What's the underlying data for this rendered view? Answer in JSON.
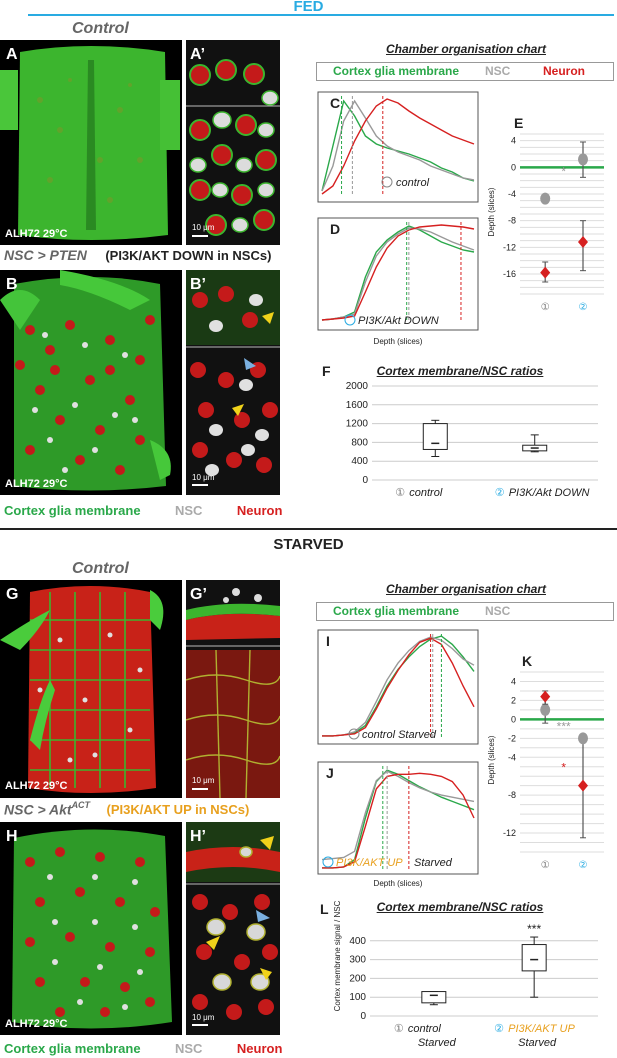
{
  "fed": {
    "title": "FED",
    "control_label": "Control",
    "panel_A": "A",
    "panel_A_prime": "A’",
    "panel_A_temp": "ALH72 29°C",
    "panel_A_prime_scale": "10 μm",
    "geno_B": "NSC > PTEN",
    "geno_B_paren": "(PI3K/AKT DOWN in NSCs)",
    "panel_B": "B",
    "panel_B_prime": "B’",
    "panel_B_temp": "ALH72 29°C",
    "panel_B_prime_scale": "10 μm",
    "bottom_legend": {
      "glia": "Cortex glia membrane",
      "nsc": "NSC",
      "neuron": "Neuron"
    },
    "chamber_title": "Chamber organisation chart",
    "legend": {
      "glia": "Cortex glia membrane",
      "nsc": "NSC",
      "neuron": "Neuron"
    },
    "panel_C": "C",
    "panel_C_label": "control",
    "panel_D": "D",
    "panel_D_label": "PI3K/Akt DOWN",
    "panel_D_xlabel": "Depth (slices)",
    "panel_E": "E",
    "panel_F": "F",
    "panel_F_title": "Cortex membrane/NSC ratios"
  },
  "starved": {
    "title": "STARVED",
    "control_label": "Control",
    "panel_G": "G",
    "panel_G_prime": "G’",
    "panel_G_temp": "ALH72 29°C",
    "panel_G_prime_scale": "10 μm",
    "geno_H": "NSC > Akt",
    "geno_H_sup": "ACT",
    "geno_H_paren": "(PI3K/AKT UP in NSCs)",
    "panel_H": "H",
    "panel_H_prime": "H’",
    "panel_H_temp": "ALH72 29°C",
    "panel_H_prime_scale": "10 μm",
    "bottom_legend": {
      "glia": "Cortex glia membrane",
      "nsc": "NSC",
      "neuron": "Neuron"
    },
    "chamber_title": "Chamber organisation chart",
    "legend": {
      "glia": "Cortex glia membrane",
      "nsc": "NSC"
    },
    "panel_I": "I",
    "panel_I_label": "control Starved",
    "panel_J": "J",
    "panel_J_label": "PI3K/AKT UP",
    "panel_J_label2": "Starved",
    "panel_J_xlabel": "Depth (slices)",
    "panel_K": "K",
    "panel_L": "L",
    "panel_L_title": "Cortex membrane/NSC ratios"
  },
  "colors": {
    "glia": "#2aa84a",
    "nsc": "#999999",
    "neuron": "#d62020",
    "fed_rule": "#29abe2",
    "up": "#e8a01e",
    "circ": "#29abe2"
  },
  "chart_data": [
    {
      "id": "C",
      "type": "line",
      "xlabel": "",
      "ylabel": "",
      "x": [
        0,
        5,
        10,
        15,
        20,
        25,
        30,
        35,
        40,
        45,
        50,
        55,
        60,
        65,
        70
      ],
      "series": [
        {
          "name": "Cortex glia membrane",
          "values": [
            0.05,
            0.5,
            0.95,
            0.8,
            0.6,
            0.52,
            0.48,
            0.45,
            0.42,
            0.38,
            0.34,
            0.28,
            0.24,
            0.18,
            0.15
          ]
        },
        {
          "name": "NSC",
          "values": [
            0.05,
            0.3,
            0.75,
            0.95,
            0.78,
            0.6,
            0.5,
            0.44,
            0.4,
            0.36,
            0.3,
            0.26,
            0.22,
            0.18,
            0.16
          ]
        },
        {
          "name": "Neuron",
          "values": [
            0.02,
            0.1,
            0.3,
            0.55,
            0.75,
            0.9,
            0.97,
            0.93,
            0.85,
            0.78,
            0.72,
            0.66,
            0.6,
            0.56,
            0.52
          ]
        }
      ],
      "markers": {
        "glia": 9,
        "nsc": 14,
        "neuron": 28
      }
    },
    {
      "id": "D",
      "type": "line",
      "xlabel": "Depth (slices)",
      "ylabel": "",
      "x": [
        0,
        5,
        10,
        15,
        20,
        25,
        30,
        35,
        40,
        45,
        50,
        55,
        60,
        65,
        70
      ],
      "series": [
        {
          "name": "Cortex glia membrane",
          "values": [
            0.02,
            0.03,
            0.05,
            0.1,
            0.45,
            0.7,
            0.82,
            0.9,
            0.96,
            0.92,
            0.86,
            0.8,
            0.76,
            0.72,
            0.7
          ]
        },
        {
          "name": "NSC",
          "values": [
            0.02,
            0.03,
            0.05,
            0.08,
            0.4,
            0.66,
            0.8,
            0.88,
            0.94,
            0.93,
            0.9,
            0.85,
            0.8,
            0.76,
            0.72
          ]
        },
        {
          "name": "Neuron",
          "values": [
            0.02,
            0.03,
            0.04,
            0.06,
            0.3,
            0.55,
            0.74,
            0.86,
            0.92,
            0.95,
            0.96,
            0.97,
            0.96,
            0.95,
            0.93
          ]
        }
      ],
      "markers": {
        "glia": 39,
        "nsc": 40,
        "neuron": 64
      }
    },
    {
      "id": "E",
      "type": "scatter",
      "xlabel": "",
      "ylabel": "Depth (slices)",
      "ylim": [
        -19,
        5
      ],
      "yticks": [
        4,
        0,
        -4,
        -8,
        -12,
        -16
      ],
      "categories": [
        "①",
        "②"
      ],
      "series": [
        {
          "name": "NSC",
          "values": [
            -4.7,
            1.2
          ],
          "error_low": [
            -4.7,
            -1.5
          ],
          "error_high": [
            -4.7,
            3.8
          ]
        },
        {
          "name": "Neuron",
          "values": [
            -15.8,
            -11.2
          ],
          "error_low": [
            -17.2,
            -15.5
          ],
          "error_high": [
            -14.2,
            -8.0
          ]
        }
      ],
      "annotations": [
        "*"
      ]
    },
    {
      "id": "F",
      "type": "bar",
      "xlabel": "",
      "ylabel": "",
      "ylim": [
        0,
        2000
      ],
      "yticks": [
        0,
        400,
        800,
        1200,
        1600,
        2000
      ],
      "categories": [
        "① control",
        "② PI3K/Akt DOWN"
      ],
      "boxes": [
        {
          "min": 500,
          "q1": 650,
          "median": 780,
          "q3": 1200,
          "max": 1270
        },
        {
          "min": 600,
          "q1": 620,
          "median": 680,
          "q3": 740,
          "max": 960
        }
      ]
    },
    {
      "id": "I",
      "type": "line",
      "xlabel": "",
      "ylabel": "",
      "x": [
        0,
        5,
        10,
        15,
        20,
        25,
        30,
        35,
        40,
        45,
        50,
        55,
        60,
        65,
        70
      ],
      "series": [
        {
          "name": "Cortex glia membrane",
          "values": [
            0.02,
            0.02,
            0.03,
            0.05,
            0.12,
            0.3,
            0.5,
            0.66,
            0.78,
            0.88,
            0.95,
            0.98,
            0.9,
            0.78,
            0.64
          ]
        },
        {
          "name": "NSC",
          "values": [
            0.02,
            0.02,
            0.03,
            0.06,
            0.15,
            0.35,
            0.56,
            0.72,
            0.84,
            0.93,
            0.97,
            0.94,
            0.86,
            0.76,
            0.7
          ]
        },
        {
          "name": "Neuron",
          "values": [
            0.02,
            0.02,
            0.03,
            0.04,
            0.1,
            0.28,
            0.48,
            0.65,
            0.8,
            0.92,
            0.96,
            0.9,
            0.72,
            0.5,
            0.3
          ]
        }
      ],
      "markers": {
        "glia": 55,
        "nsc": 51,
        "neuron": 50
      }
    },
    {
      "id": "J",
      "type": "line",
      "xlabel": "Depth (slices)",
      "ylabel": "",
      "x": [
        0,
        5,
        10,
        15,
        20,
        25,
        30,
        35,
        40,
        45,
        50,
        55,
        60,
        65,
        70
      ],
      "series": [
        {
          "name": "Cortex glia membrane",
          "values": [
            0.02,
            0.02,
            0.03,
            0.1,
            0.5,
            0.85,
            0.96,
            0.92,
            0.86,
            0.8,
            0.75,
            0.7,
            0.66,
            0.62,
            0.58
          ]
        },
        {
          "name": "NSC",
          "values": [
            0.1,
            0.11,
            0.12,
            0.18,
            0.55,
            0.86,
            0.95,
            0.9,
            0.84,
            0.79,
            0.75,
            0.72,
            0.7,
            0.68,
            0.66
          ]
        },
        {
          "name": "Neuron",
          "values": [
            0.02,
            0.02,
            0.03,
            0.08,
            0.42,
            0.78,
            0.9,
            0.92,
            0.92,
            0.93,
            0.92,
            0.9,
            0.85,
            0.72,
            0.5
          ]
        }
      ],
      "markers": {
        "glia": 28,
        "nsc": 30,
        "neuron": 40
      }
    },
    {
      "id": "K",
      "type": "scatter",
      "xlabel": "",
      "ylabel": "Depth (slices)",
      "ylim": [
        -14,
        5
      ],
      "yticks": [
        4,
        2,
        0,
        -2,
        -4,
        -8,
        -12
      ],
      "categories": [
        "①",
        "②"
      ],
      "series": [
        {
          "name": "NSC",
          "values": [
            1.0,
            -2.0
          ],
          "error_low": [
            -0.4,
            -12.5
          ],
          "error_high": [
            2.4,
            -2.0
          ]
        },
        {
          "name": "Neuron",
          "values": [
            2.4,
            -7.0
          ],
          "error_low": [
            1.6,
            -7.0
          ],
          "error_high": [
            3.0,
            -7.0
          ]
        }
      ],
      "annotations": [
        "***",
        "*"
      ]
    },
    {
      "id": "L",
      "type": "bar",
      "xlabel": "",
      "ylabel": "Cortex membrane signal / NSC",
      "ylim": [
        0,
        500
      ],
      "yticks": [
        0,
        100,
        200,
        300,
        400
      ],
      "categories": [
        "① control Starved",
        "② PI3K/AKT UP Starved"
      ],
      "boxes": [
        {
          "min": 60,
          "q1": 70,
          "median": 110,
          "q3": 130,
          "max": 130
        },
        {
          "min": 100,
          "q1": 240,
          "median": 300,
          "q3": 380,
          "max": 420
        }
      ],
      "annotations": [
        "***"
      ]
    }
  ]
}
